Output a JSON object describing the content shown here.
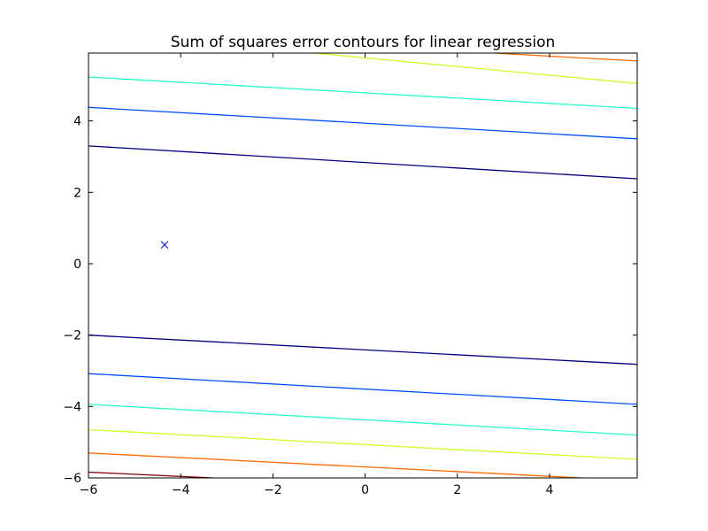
{
  "chart_data": {
    "type": "line",
    "title": "Sum of squares error contours for linear regression",
    "xlabel": "",
    "ylabel": "",
    "xlim": [
      -6,
      5.9
    ],
    "ylim": [
      -6,
      5.9
    ],
    "xticks": [
      -6,
      -4,
      -2,
      0,
      2,
      4
    ],
    "yticks": [
      -6,
      -4,
      -2,
      0,
      2,
      4
    ],
    "xtick_labels": [
      "−6",
      "−4",
      "−2",
      "0",
      "2",
      "4"
    ],
    "ytick_labels": [
      "−6",
      "−4",
      "−2",
      "0",
      "2",
      "4"
    ],
    "grid": false,
    "legend": "none",
    "series": [
      {
        "color": "#00007f",
        "x": [
          -6,
          5.9
        ],
        "y": [
          3.3,
          2.38
        ]
      },
      {
        "color": "#00007f",
        "x": [
          -6,
          5.9
        ],
        "y": [
          -2.0,
          -2.82
        ]
      },
      {
        "color": "#0050ff",
        "x": [
          -6,
          5.9
        ],
        "y": [
          4.38,
          3.5
        ]
      },
      {
        "color": "#0050ff",
        "x": [
          -6,
          5.9
        ],
        "y": [
          -3.08,
          -3.94
        ]
      },
      {
        "color": "#29ffce",
        "x": [
          -6,
          5.9
        ],
        "y": [
          5.23,
          4.35
        ]
      },
      {
        "color": "#29ffce",
        "x": [
          -6,
          5.9
        ],
        "y": [
          -3.94,
          -4.8
        ]
      },
      {
        "color": "#ceff29",
        "x": [
          -1.1,
          5.9
        ],
        "y": [
          5.9,
          5.05
        ]
      },
      {
        "color": "#ceff29",
        "x": [
          -6,
          5.9
        ],
        "y": [
          -4.65,
          -5.48
        ]
      },
      {
        "color": "#ff6800",
        "x": [
          2.8,
          5.9
        ],
        "y": [
          5.9,
          5.68
        ]
      },
      {
        "color": "#ff6800",
        "x": [
          -6,
          4.7
        ],
        "y": [
          -5.3,
          -6.0
        ]
      },
      {
        "color": "#7f0000",
        "x": [
          -6,
          -3.3
        ],
        "y": [
          -5.84,
          -6.0
        ]
      }
    ],
    "markers": [
      {
        "symbol": "x",
        "color": "#0000ff",
        "x": -4.35,
        "y": 0.53
      }
    ]
  }
}
